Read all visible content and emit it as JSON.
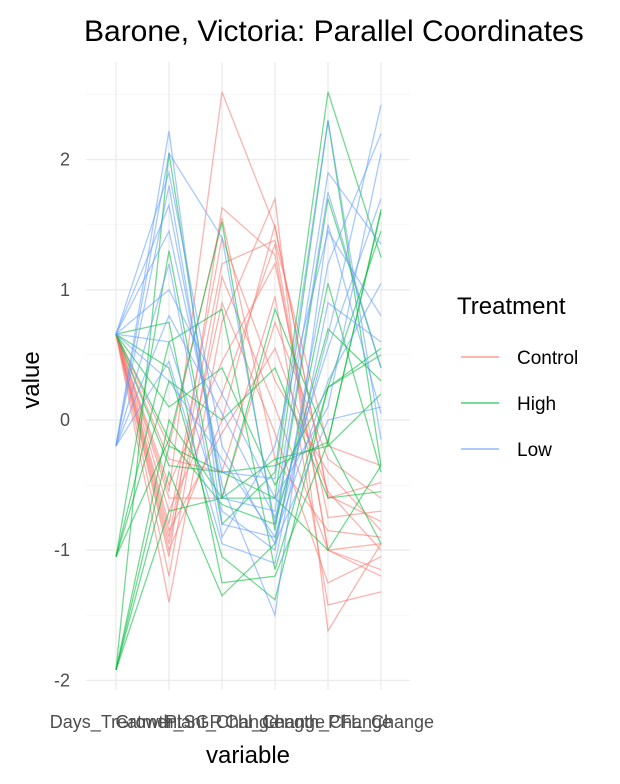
{
  "chart_data": {
    "type": "line",
    "title": "Barone, Victoria: Parallel Coordinates",
    "xlabel": "variable",
    "ylabel": "value",
    "categories": [
      "Days_Treatment",
      "Growth_SGR",
      "Plant_Change",
      "Chl_Change",
      "Length_Change",
      "PFL_Change"
    ],
    "x_tick_label_text": "Days_TreatmentGrowth_SGRPlant_ChangeChl_ChangeLength_ChangePFL_Change",
    "ylim": [
      -2.1,
      2.55
    ],
    "yticks": [
      -2,
      -1,
      0,
      1,
      2
    ],
    "ytick_labels": [
      "-2",
      "-1",
      "0",
      "1",
      "2"
    ],
    "grid": true,
    "legend": {
      "title": "Treatment",
      "placement": "right"
    },
    "series": [
      {
        "name": "Control",
        "color": "#F8766D",
        "lines": [
          [
            0.66,
            -0.55,
            2.52,
            1.48,
            -0.58,
            -0.78
          ],
          [
            0.66,
            -1.05,
            1.63,
            1.27,
            -1.0,
            -0.95
          ],
          [
            0.66,
            -0.9,
            1.2,
            1.38,
            -0.2,
            -0.35
          ],
          [
            0.66,
            -1.4,
            0.75,
            1.7,
            -1.62,
            -0.95
          ],
          [
            0.66,
            -0.3,
            -0.4,
            0.95,
            -1.42,
            -1.32
          ],
          [
            0.66,
            -0.8,
            1.4,
            0.3,
            -0.4,
            -0.85
          ],
          [
            0.66,
            -0.7,
            0.2,
            1.35,
            -1.0,
            -1.15
          ],
          [
            0.66,
            -1.0,
            0.0,
            1.5,
            -0.6,
            -0.48
          ],
          [
            0.66,
            -0.2,
            1.55,
            -0.3,
            -0.85,
            -0.9
          ],
          [
            0.66,
            -0.95,
            0.9,
            -0.1,
            -1.25,
            -1.05
          ],
          [
            0.66,
            -0.6,
            -0.6,
            0.75,
            -0.3,
            -0.6
          ],
          [
            0.66,
            -1.2,
            1.1,
            0.1,
            -1.0,
            -1.2
          ],
          [
            0.66,
            -0.5,
            0.45,
            1.2,
            -0.75,
            -0.7
          ],
          [
            0.66,
            -0.85,
            -0.1,
            0.55,
            -0.55,
            -1.0
          ]
        ]
      },
      {
        "name": "High",
        "color": "#00BA38",
        "lines": [
          [
            -1.05,
            1.3,
            -0.8,
            -0.4,
            2.52,
            1.25
          ],
          [
            -1.92,
            2.05,
            -0.6,
            -0.6,
            2.3,
            -0.35
          ],
          [
            0.66,
            0.75,
            -1.25,
            -1.2,
            -0.17,
            1.6
          ],
          [
            -1.05,
            -0.15,
            1.52,
            -0.85,
            1.7,
            0.4
          ],
          [
            0.66,
            0.4,
            -1.05,
            -1.38,
            0.25,
            1.45
          ],
          [
            -1.92,
            -0.7,
            -0.6,
            0.85,
            -0.17,
            -0.95
          ],
          [
            0.66,
            0.1,
            0.4,
            -0.5,
            0.25,
            0.55
          ],
          [
            -1.92,
            -0.4,
            -1.35,
            -0.95,
            1.05,
            -0.4
          ],
          [
            -1.05,
            0.3,
            0.0,
            0.4,
            -0.6,
            -0.55
          ],
          [
            0.66,
            -0.15,
            -0.65,
            -0.8,
            0.7,
            0.3
          ],
          [
            -1.92,
            -0.2,
            -0.4,
            -0.35,
            -0.17,
            1.62
          ],
          [
            -1.05,
            0.6,
            0.85,
            -1.15,
            0.25,
            0.5
          ],
          [
            0.66,
            -0.35,
            -0.4,
            -0.6,
            -1.0,
            -0.35
          ],
          [
            -1.92,
            0.0,
            -0.6,
            -0.3,
            -0.2,
            0.2
          ]
        ]
      },
      {
        "name": "Low",
        "color": "#619CFF",
        "lines": [
          [
            -0.2,
            2.22,
            -0.8,
            -0.9,
            0.65,
            2.42
          ],
          [
            -0.2,
            1.8,
            -0.6,
            -0.7,
            1.9,
            1.35
          ],
          [
            0.66,
            1.65,
            -0.5,
            -1.5,
            1.5,
            0.05
          ],
          [
            0.66,
            0.6,
            -0.7,
            -1.0,
            1.2,
            2.2
          ],
          [
            -0.2,
            2.05,
            1.4,
            -0.8,
            1.75,
            0.4
          ],
          [
            0.66,
            0.3,
            -0.3,
            -0.9,
            0.3,
            1.05
          ],
          [
            -0.2,
            1.2,
            -0.9,
            -0.2,
            1.45,
            0.8
          ],
          [
            0.66,
            1.0,
            0.2,
            -0.6,
            0.1,
            2.05
          ],
          [
            -0.2,
            0.45,
            -0.95,
            -1.1,
            0.9,
            0.6
          ],
          [
            0.66,
            1.45,
            -0.4,
            -0.45,
            2.3,
            -0.15
          ],
          [
            -0.2,
            0.8,
            0.05,
            -0.75,
            0.55,
            1.7
          ],
          [
            0.66,
            1.9,
            -0.2,
            -0.95,
            0.0,
            0.1
          ]
        ]
      }
    ]
  }
}
